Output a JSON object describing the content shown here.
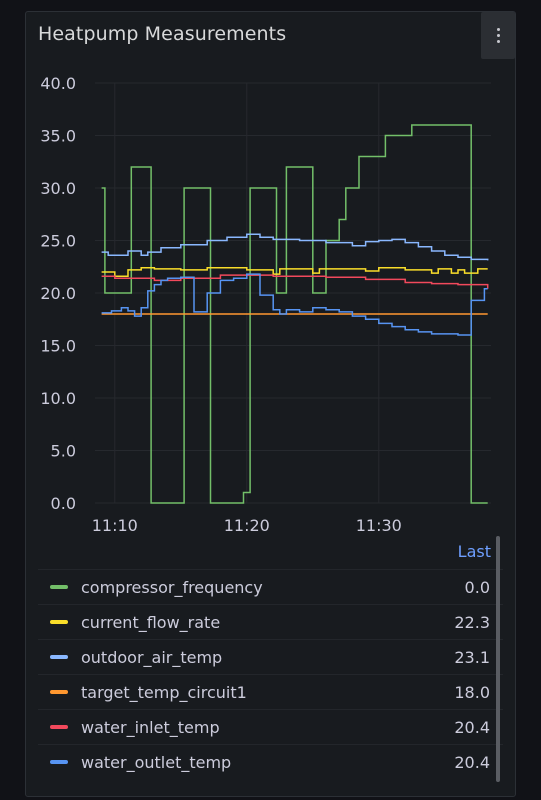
{
  "panel": {
    "title": "Heatpump Measurements"
  },
  "legend": {
    "column_header": "Last"
  },
  "chart_data": {
    "type": "line",
    "title": "Heatpump Measurements",
    "xlabel": "",
    "ylabel": "",
    "ylim": [
      0,
      40
    ],
    "xlim": [
      "11:08:30",
      "11:38:30"
    ],
    "y_ticks": [
      "0.0",
      "5.0",
      "10.0",
      "15.0",
      "20.0",
      "25.0",
      "30.0",
      "35.0",
      "40.0"
    ],
    "x_ticks": [
      "11:10",
      "11:20",
      "11:30"
    ],
    "step": true,
    "grid": true,
    "legend_position": "bottom",
    "series": [
      {
        "name": "compressor_frequency",
        "color": "#73bf69",
        "last": "0.0",
        "points": [
          [
            "11:09:00",
            30
          ],
          [
            "11:09:15",
            20
          ],
          [
            "11:10:00",
            20
          ],
          [
            "11:11:15",
            32
          ],
          [
            "11:12:45",
            0
          ],
          [
            "11:15:15",
            30
          ],
          [
            "11:17:15",
            0
          ],
          [
            "11:19:45",
            1
          ],
          [
            "11:20:15",
            30
          ],
          [
            "11:22:15",
            20
          ],
          [
            "11:23:00",
            32
          ],
          [
            "11:25:00",
            20
          ],
          [
            "11:26:00",
            25
          ],
          [
            "11:27:00",
            27
          ],
          [
            "11:27:30",
            30
          ],
          [
            "11:28:30",
            33
          ],
          [
            "11:30:30",
            35
          ],
          [
            "11:32:30",
            36
          ],
          [
            "11:37:00",
            0
          ],
          [
            "11:38:15",
            0
          ]
        ]
      },
      {
        "name": "current_flow_rate",
        "color": "#fade2a",
        "last": "22.3",
        "points": [
          [
            "11:09:00",
            22.0
          ],
          [
            "11:10:00",
            21.6
          ],
          [
            "11:11:00",
            22.2
          ],
          [
            "11:12:00",
            22.4
          ],
          [
            "11:13:00",
            22.3
          ],
          [
            "11:15:00",
            22.2
          ],
          [
            "11:17:00",
            22.4
          ],
          [
            "11:20:00",
            22.2
          ],
          [
            "11:22:00",
            21.8
          ],
          [
            "11:22:30",
            22.3
          ],
          [
            "11:25:00",
            21.9
          ],
          [
            "11:25:30",
            22.3
          ],
          [
            "11:29:00",
            22.1
          ],
          [
            "11:30:00",
            22.4
          ],
          [
            "11:32:00",
            22.2
          ],
          [
            "11:34:00",
            21.9
          ],
          [
            "11:34:30",
            22.3
          ],
          [
            "11:35:30",
            21.9
          ],
          [
            "11:36:00",
            22.2
          ],
          [
            "11:36:30",
            21.9
          ],
          [
            "11:37:30",
            22.3
          ],
          [
            "11:38:15",
            22.3
          ]
        ]
      },
      {
        "name": "outdoor_air_temp",
        "color": "#8ab8ff",
        "last": "23.1",
        "points": [
          [
            "11:09:00",
            23.9
          ],
          [
            "11:09:30",
            23.6
          ],
          [
            "11:11:00",
            24.0
          ],
          [
            "11:12:00",
            23.6
          ],
          [
            "11:12:30",
            23.9
          ],
          [
            "11:13:30",
            24.3
          ],
          [
            "11:15:00",
            24.6
          ],
          [
            "11:17:00",
            25.0
          ],
          [
            "11:18:30",
            25.3
          ],
          [
            "11:20:00",
            25.6
          ],
          [
            "11:21:00",
            25.3
          ],
          [
            "11:22:00",
            25.1
          ],
          [
            "11:24:00",
            25.0
          ],
          [
            "11:26:00",
            24.8
          ],
          [
            "11:28:00",
            24.5
          ],
          [
            "11:29:00",
            24.9
          ],
          [
            "11:30:00",
            25.0
          ],
          [
            "11:31:00",
            25.1
          ],
          [
            "11:32:00",
            24.8
          ],
          [
            "11:33:00",
            24.4
          ],
          [
            "11:34:00",
            24.0
          ],
          [
            "11:35:00",
            23.6
          ],
          [
            "11:36:00",
            23.4
          ],
          [
            "11:37:00",
            23.2
          ],
          [
            "11:38:15",
            23.1
          ]
        ]
      },
      {
        "name": "target_temp_circuit1",
        "color": "#ff9830",
        "last": "18.0",
        "points": [
          [
            "11:09:00",
            18.0
          ],
          [
            "11:38:15",
            18.0
          ]
        ]
      },
      {
        "name": "water_inlet_temp",
        "color": "#f2495c",
        "last": "20.4",
        "points": [
          [
            "11:09:00",
            21.6
          ],
          [
            "11:10:00",
            21.4
          ],
          [
            "11:13:00",
            21.2
          ],
          [
            "11:15:00",
            21.4
          ],
          [
            "11:18:00",
            21.7
          ],
          [
            "11:22:00",
            21.6
          ],
          [
            "11:26:00",
            21.5
          ],
          [
            "11:29:00",
            21.3
          ],
          [
            "11:32:00",
            21.0
          ],
          [
            "11:34:00",
            20.9
          ],
          [
            "11:36:00",
            20.8
          ],
          [
            "11:38:15",
            20.4
          ]
        ]
      },
      {
        "name": "water_outlet_temp",
        "color": "#5794f2",
        "last": "20.4",
        "points": [
          [
            "11:09:00",
            18.1
          ],
          [
            "11:09:45",
            18.3
          ],
          [
            "11:10:30",
            18.6
          ],
          [
            "11:11:00",
            18.3
          ],
          [
            "11:11:30",
            17.8
          ],
          [
            "11:12:00",
            18.6
          ],
          [
            "11:12:30",
            20.2
          ],
          [
            "11:13:00",
            20.8
          ],
          [
            "11:13:30",
            21.2
          ],
          [
            "11:14:00",
            21.4
          ],
          [
            "11:15:00",
            21.5
          ],
          [
            "11:16:00",
            18.2
          ],
          [
            "11:17:00",
            20.0
          ],
          [
            "11:18:00",
            21.2
          ],
          [
            "11:19:00",
            21.4
          ],
          [
            "11:20:00",
            21.8
          ],
          [
            "11:21:00",
            19.8
          ],
          [
            "11:22:00",
            18.4
          ],
          [
            "11:22:30",
            18.0
          ],
          [
            "11:23:00",
            18.4
          ],
          [
            "11:24:00",
            18.2
          ],
          [
            "11:25:00",
            18.6
          ],
          [
            "11:26:00",
            18.4
          ],
          [
            "11:27:00",
            18.2
          ],
          [
            "11:28:00",
            17.8
          ],
          [
            "11:29:00",
            17.5
          ],
          [
            "11:30:00",
            17.1
          ],
          [
            "11:31:00",
            16.8
          ],
          [
            "11:32:00",
            16.5
          ],
          [
            "11:33:00",
            16.3
          ],
          [
            "11:34:00",
            16.1
          ],
          [
            "11:36:00",
            16.0
          ],
          [
            "11:37:00",
            19.3
          ],
          [
            "11:38:00",
            20.4
          ],
          [
            "11:38:15",
            20.4
          ]
        ]
      }
    ]
  }
}
